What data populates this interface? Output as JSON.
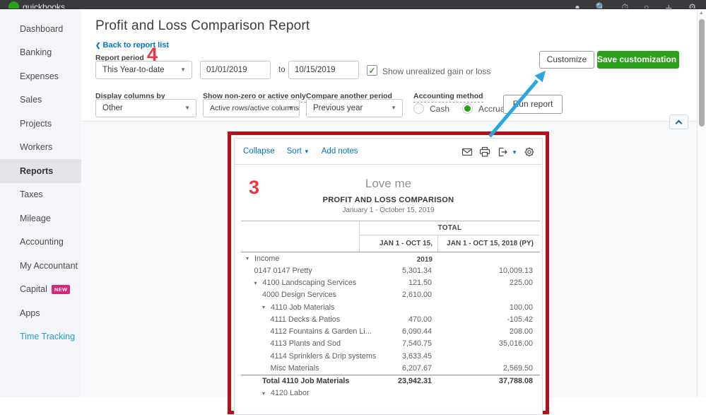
{
  "topbar": {
    "brand": "quickbooks",
    "icons": [
      "avatar-icon",
      "search-icon",
      "timer-icon",
      "help-icon",
      "plus-icon",
      "gear-icon"
    ]
  },
  "sidebar": {
    "selected": "Reports",
    "items": [
      {
        "label": "Dashboard"
      },
      {
        "label": "Banking"
      },
      {
        "label": "Expenses"
      },
      {
        "label": "Sales"
      },
      {
        "label": "Projects"
      },
      {
        "label": "Workers"
      },
      {
        "label": "Reports"
      },
      {
        "label": "Taxes"
      },
      {
        "label": "Mileage"
      },
      {
        "label": "Accounting"
      },
      {
        "label": "My Accountant"
      },
      {
        "label": "Capital",
        "badge": "NEW"
      },
      {
        "label": "Apps"
      },
      {
        "label": "Time Tracking",
        "teal": true
      }
    ]
  },
  "header": {
    "title": "Profit and Loss Comparison Report",
    "back_link": "Back to report list",
    "report_period_label": "Report period"
  },
  "filters": {
    "period_select": "This Year-to-date",
    "date_from": "01/01/2019",
    "date_to_label": "to",
    "date_to": "10/15/2019",
    "unrealized_checkbox_label": "Show unrealized gain or loss",
    "unrealized_checked": "✓",
    "customize_button": "Customize",
    "save_customization_button": "Save customization",
    "display_columns_by": {
      "label": "Display columns by",
      "value": "Other"
    },
    "show_nonzero": {
      "label": "Show non-zero or active only",
      "value": "Active rows/active columns"
    },
    "compare_period": {
      "label": "Compare another period",
      "value": "Previous year"
    },
    "accounting_method": {
      "label": "Accounting method",
      "options": [
        {
          "label": "Cash",
          "selected": false
        },
        {
          "label": "Accrual",
          "selected": true
        }
      ]
    },
    "run_report_button": "Run report"
  },
  "report": {
    "toolbar": {
      "links": [
        "Collapse",
        "Sort",
        "Add notes"
      ],
      "icons": [
        "email-icon",
        "print-icon",
        "export-icon",
        "settings-icon"
      ]
    },
    "company": "Love me",
    "title": "PROFIT AND LOSS COMPARISON",
    "date_range": "January 1 - October 15, 2019",
    "table": {
      "group_header": "TOTAL",
      "columns": [
        "JAN 1 - OCT 15, 2019",
        "JAN 1 - OCT 15, 2018 (PY)"
      ],
      "rows": [
        {
          "label": "Income",
          "level": 0,
          "caret": true,
          "v2019": "",
          "v2018": ""
        },
        {
          "label": "0147 0147 Pretty",
          "level": 1,
          "caret": false,
          "v2019": "5,301.34",
          "v2018": "10,009.13"
        },
        {
          "label": "4100 Landscaping Services",
          "level": 1,
          "caret": true,
          "v2019": "121.50",
          "v2018": "225.00"
        },
        {
          "label": "4000 Design Services",
          "level": 2,
          "caret": false,
          "v2019": "2,610.00",
          "v2018": ""
        },
        {
          "label": "4110 Job Materials",
          "level": 2,
          "caret": true,
          "v2019": "",
          "v2018": "100.00"
        },
        {
          "label": "4111 Decks & Patios",
          "level": 3,
          "caret": false,
          "v2019": "470.00",
          "v2018": "-105.42"
        },
        {
          "label": "4112 Fountains & Garden Li...",
          "level": 3,
          "caret": false,
          "v2019": "6,090.44",
          "v2018": "208.00"
        },
        {
          "label": "4113 Plants and Sod",
          "level": 3,
          "caret": false,
          "v2019": "7,540.75",
          "v2018": "35,016.00"
        },
        {
          "label": "4114 Sprinklers & Drip systems",
          "level": 3,
          "caret": false,
          "v2019": "3,633.45",
          "v2018": ""
        },
        {
          "label": "Misc Materials",
          "level": 3,
          "caret": false,
          "v2019": "6,207.67",
          "v2018": "2,569.50"
        },
        {
          "label": "Total 4110 Job Materials",
          "level": 2,
          "caret": false,
          "total": true,
          "v2019": "23,942.31",
          "v2018": "37,788.08"
        },
        {
          "label": "4120 Labor",
          "level": 2,
          "caret": true,
          "v2019": "",
          "v2018": ""
        }
      ]
    }
  },
  "annotations": {
    "three": "3",
    "four": "4"
  },
  "colors": {
    "qb_green": "#2ca01c",
    "link_blue": "#0077c5",
    "frame_red": "#b3121a",
    "annotation_red": "#e8383d",
    "arrow_blue": "#2aa7df",
    "badge_pink": "#d8247a",
    "topbar_dark": "#393a3d"
  }
}
